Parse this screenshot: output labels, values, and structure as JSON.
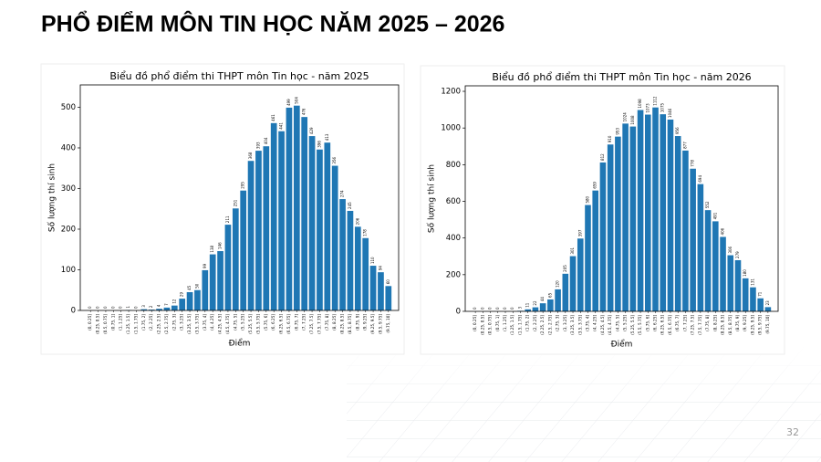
{
  "title": "PHỔ ĐIỂM MÔN TIN HỌC NĂM 2025 – 2026",
  "page_number": "32",
  "chart_data": [
    {
      "type": "bar",
      "title": "Biểu đồ phổ điểm thi THPT môn Tin học - năm 2025",
      "x_label": "Điểm",
      "y_label": "Số lượng thí sinh",
      "color": "#1f77b4",
      "categories": [
        "(0, 0.25]",
        "(0.25, 0.5]",
        "(0.5, 0.75]",
        "(0.75, 1]",
        "(1, 1.25]",
        "(1.25, 1.5]",
        "(1.5, 1.75]",
        "(1.75, 2]",
        "(2, 2.25]",
        "(2.25, 2.5]",
        "(2.5, 2.75]",
        "(2.75, 3]",
        "(3, 3.25]",
        "(3.25, 3.5]",
        "(3.5, 3.75]",
        "(3.75, 4]",
        "(4, 4.25]",
        "(4.25, 4.5]",
        "(4.5, 4.75]",
        "(4.75, 5]",
        "(5, 5.25]",
        "(5.25, 5.5]",
        "(5.5, 5.75]",
        "(5.75, 6]",
        "(6, 6.25]",
        "(6.25, 6.5]",
        "(6.5, 6.75]",
        "(6.75, 7]",
        "(7, 7.25]",
        "(7.25, 7.5]",
        "(7.5, 7.75]",
        "(7.75, 8]",
        "(8, 8.25]",
        "(8.25, 8.5]",
        "(8.5, 8.75]",
        "(8.75, 9]",
        "(9, 9.25]",
        "(9.25, 9.5]",
        "(9.5, 9.75]",
        "(9.75, 10]"
      ],
      "values": [
        0,
        0,
        0,
        0,
        0,
        1,
        0,
        3,
        2,
        4,
        7,
        12,
        29,
        45,
        50,
        99,
        138,
        146,
        211,
        251,
        295,
        368,
        393,
        404,
        461,
        441,
        499,
        504,
        476,
        429,
        396,
        413,
        356,
        274,
        245,
        206,
        178,
        110,
        94,
        60
      ],
      "ylim": [
        0,
        555
      ],
      "yticks": [
        0,
        100,
        200,
        300,
        400,
        500
      ]
    },
    {
      "type": "bar",
      "title": "Biểu đồ phổ điểm thi THPT môn Tin học - năm 2026",
      "x_label": "Điểm",
      "y_label": "Số lượng thí sinh",
      "color": "#1f77b4",
      "categories": [
        "(0, 0.25]",
        "(0.25, 0.5]",
        "(0.5, 0.75]",
        "(0.75, 1]",
        "(1, 1.25]",
        "(1.25, 1.5]",
        "(1.5, 1.75]",
        "(1.75, 2]",
        "(2, 2.25]",
        "(2.25, 2.5]",
        "(2.5, 2.75]",
        "(2.75, 3]",
        "(3, 3.25]",
        "(3.25, 3.5]",
        "(3.5, 3.75]",
        "(3.75, 4]",
        "(4, 4.25]",
        "(4.25, 4.5]",
        "(4.5, 4.75]",
        "(4.75, 5]",
        "(5, 5.25]",
        "(5.25, 5.5]",
        "(5.5, 5.75]",
        "(5.75, 6]",
        "(6, 6.25]",
        "(6.25, 6.5]",
        "(6.5, 6.75]",
        "(6.75, 7]",
        "(7, 7.25]",
        "(7.25, 7.5]",
        "(7.5, 7.75]",
        "(7.75, 8]",
        "(8, 8.25]",
        "(8.25, 8.5]",
        "(8.5, 8.75]",
        "(8.75, 9]",
        "(9, 9.25]",
        "(9.25, 9.5]",
        "(9.5, 9.75]",
        "(9.75, 10]"
      ],
      "values": [
        0,
        0,
        0,
        0,
        0,
        0,
        3,
        11,
        22,
        44,
        65,
        120,
        205,
        301,
        397,
        580,
        659,
        812,
        910,
        953,
        1024,
        1008,
        1098,
        1073,
        1112,
        1075,
        1046,
        956,
        877,
        778,
        694,
        552,
        491,
        406,
        306,
        279,
        180,
        131,
        71,
        23
      ],
      "ylim": [
        0,
        1230
      ],
      "yticks": [
        0,
        200,
        400,
        600,
        800,
        1000,
        1200
      ]
    }
  ]
}
